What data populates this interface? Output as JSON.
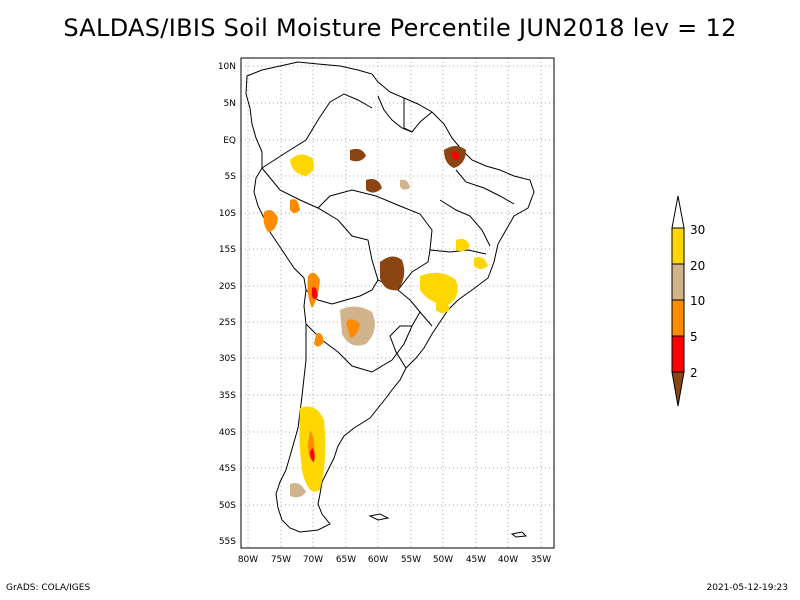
{
  "title": "SALDAS/IBIS Soil Moisture Percentile JUN2018 lev = 12",
  "footer": {
    "left": "GrADS: COLA/IGES",
    "right": "2021-05-12-19:23"
  },
  "map": {
    "lat_ticks": [
      "10N",
      "5N",
      "EQ",
      "5S",
      "10S",
      "15S",
      "20S",
      "25S",
      "30S",
      "35S",
      "40S",
      "45S",
      "50S",
      "55S"
    ],
    "lon_ticks": [
      "80W",
      "75W",
      "70W",
      "65W",
      "60W",
      "55W",
      "50W",
      "45W",
      "40W",
      "35W"
    ],
    "lat_range": [
      -56,
      11
    ],
    "lon_range": [
      -81,
      -34
    ],
    "grid": "dotted"
  },
  "legend": {
    "levels": [
      "2",
      "5",
      "10",
      "20",
      "30"
    ],
    "colors": [
      "#8B4513",
      "#ff0000",
      "#ff8c00",
      "#d2b48c",
      "#ffd700",
      "#ffffff"
    ]
  },
  "colors": {
    "frame": "#000000",
    "grid": "#aaaaaa",
    "land_outline": "#000000"
  }
}
